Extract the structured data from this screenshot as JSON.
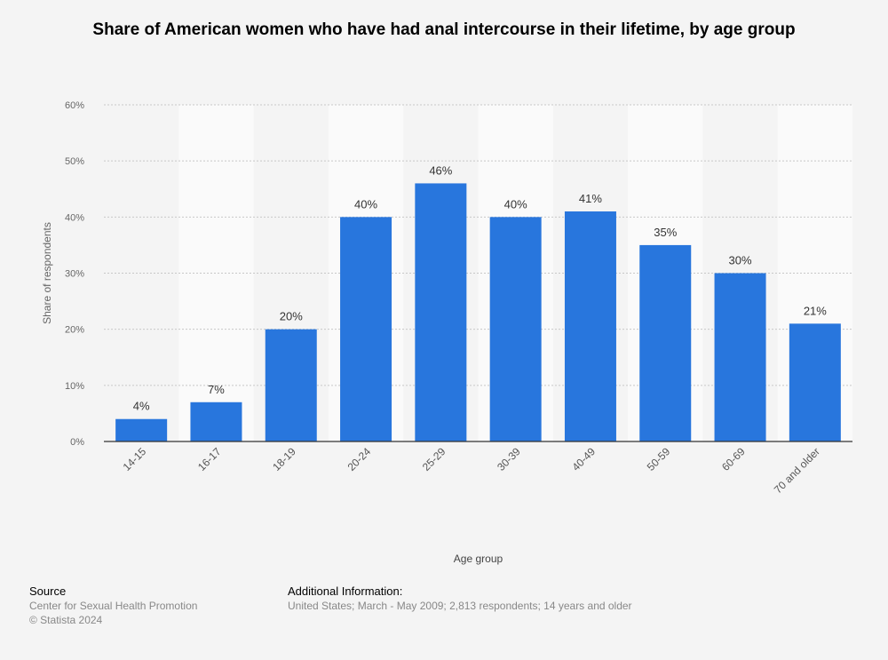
{
  "chart_data": {
    "type": "bar",
    "title": "Share of American women who have had anal intercourse in their lifetime, by age group",
    "xlabel": "Age group",
    "ylabel": "Share of respondents",
    "categories": [
      "14-15",
      "16-17",
      "18-19",
      "20-24",
      "25-29",
      "30-39",
      "40-49",
      "50-59",
      "60-69",
      "70 and older"
    ],
    "values": [
      4,
      7,
      20,
      40,
      46,
      40,
      41,
      35,
      30,
      21
    ],
    "value_labels": [
      "4%",
      "7%",
      "20%",
      "40%",
      "46%",
      "40%",
      "41%",
      "35%",
      "30%",
      "21%"
    ],
    "ylim": [
      0,
      60
    ],
    "yticks": [
      "0%",
      "10%",
      "20%",
      "30%",
      "40%",
      "50%",
      "60%"
    ],
    "grid": true,
    "bar_color": "#2876dd"
  },
  "footer": {
    "source_heading": "Source",
    "source_lines": [
      "Center for Sexual Health Promotion",
      "© Statista 2024"
    ],
    "info_heading": "Additional Information:",
    "info_text": "United States; March - May 2009; 2,813 respondents; 14 years and older"
  }
}
